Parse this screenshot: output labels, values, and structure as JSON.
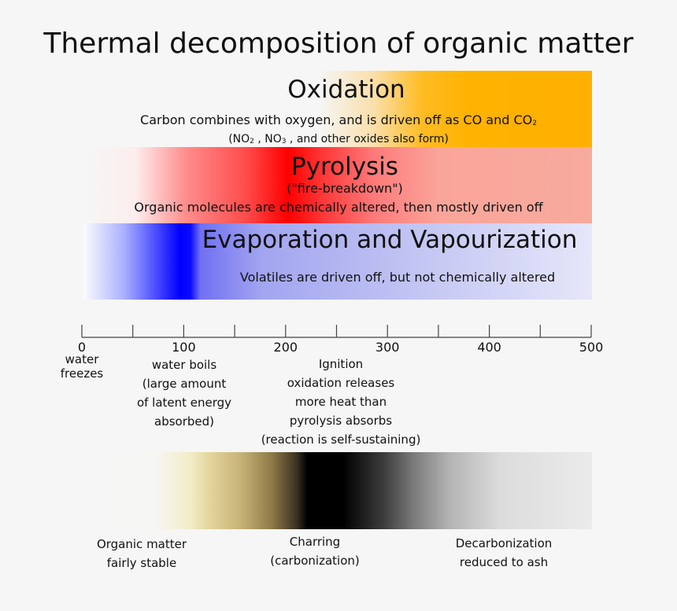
{
  "title": "Thermal decomposition of organic matter",
  "oxidation": {
    "heading": "Oxidation",
    "line1_pre": "Carbon combines with oxygen, and is driven off as CO and CO",
    "line1_sub": "2",
    "line2_a": "(NO",
    "line2_a_sub": "2",
    "line2_b": " , NO",
    "line2_b_sub": "3",
    "line2_c": " , and other oxides also form)",
    "color": "#ffb000"
  },
  "pyrolysis": {
    "heading": "Pyrolysis",
    "subheading": "(\"fire-breakdown\")",
    "description": "Organic molecules are chemically altered, then mostly driven off",
    "color": "#ff0000"
  },
  "evaporation": {
    "heading": "Evaporation and Vapourization",
    "description": "Volatiles are driven off, but not chemically altered",
    "color": "#0000ff"
  },
  "axis": {
    "ticks": [
      "0",
      "100",
      "200",
      "300",
      "400",
      "500"
    ],
    "min": 0,
    "max": 500,
    "minor_step": 50
  },
  "events": {
    "freeze": [
      "water",
      "freezes"
    ],
    "boil": [
      "water boils",
      "(large amount",
      "of latent energy",
      "absorbed)"
    ],
    "ignition": [
      "Ignition",
      "oxidation releases",
      "more heat than",
      "pyrolysis absorbs",
      "(reaction is self-sustaining)"
    ]
  },
  "stages": {
    "stable": [
      "Organic matter",
      "fairly stable"
    ],
    "charring": [
      "Charring",
      "(carbonization)"
    ],
    "decarb": [
      "Decarbonization",
      "reduced to ash"
    ]
  }
}
